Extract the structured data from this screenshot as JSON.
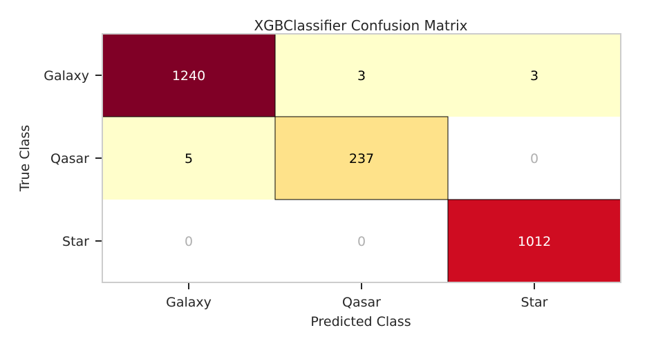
{
  "chart_data": {
    "type": "heatmap",
    "title": "XGBClassifier Confusion Matrix",
    "xlabel": "Predicted Class",
    "ylabel": "True Class",
    "x_categories": [
      "Galaxy",
      "Qasar",
      "Star"
    ],
    "y_categories": [
      "Galaxy",
      "Qasar",
      "Star"
    ],
    "values": [
      [
        1240,
        3,
        3
      ],
      [
        5,
        237,
        0
      ],
      [
        0,
        0,
        1012
      ]
    ],
    "colormap": "YlOrRd",
    "zero_cell_color": "#ffffff",
    "zero_text_color": "#b0b0b0",
    "diagonal_outline": true,
    "grid": false
  }
}
